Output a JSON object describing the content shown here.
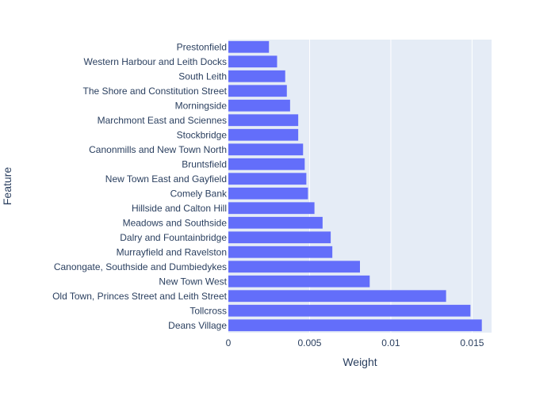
{
  "chart_data": {
    "type": "bar",
    "orientation": "horizontal",
    "title": "",
    "xlabel": "Weight",
    "ylabel": "Feature",
    "xlim": [
      0,
      0.0162
    ],
    "xticks": [
      0,
      0.005,
      0.01,
      0.015
    ],
    "xtick_labels": [
      "0",
      "0.005",
      "0.01",
      "0.015"
    ],
    "grid": true,
    "colors": {
      "bar": "#636efa",
      "plot_bg": "#e5ecf6",
      "grid": "#ffffff",
      "text": "#2a3f5f"
    },
    "categories": [
      "Prestonfield",
      "Western Harbour and Leith Docks",
      "South Leith",
      "The Shore and Constitution Street",
      "Morningside",
      "Marchmont East and Sciennes",
      "Stockbridge",
      "Canonmills and New Town North",
      "Bruntsfield",
      "New Town East and Gayfield",
      "Comely Bank",
      "Hillside and Calton Hill",
      "Meadows and Southside",
      "Dalry and Fountainbridge",
      "Murrayfield and Ravelston",
      "Canongate, Southside and Dumbiedykes",
      "New Town West",
      "Old Town, Princes Street and Leith Street",
      "Tollcross",
      "Deans Village"
    ],
    "values": [
      0.0025,
      0.003,
      0.0035,
      0.0036,
      0.0038,
      0.0043,
      0.0043,
      0.0046,
      0.0047,
      0.0048,
      0.0049,
      0.0053,
      0.0058,
      0.0063,
      0.0064,
      0.0081,
      0.0087,
      0.0134,
      0.0149,
      0.0156
    ]
  }
}
